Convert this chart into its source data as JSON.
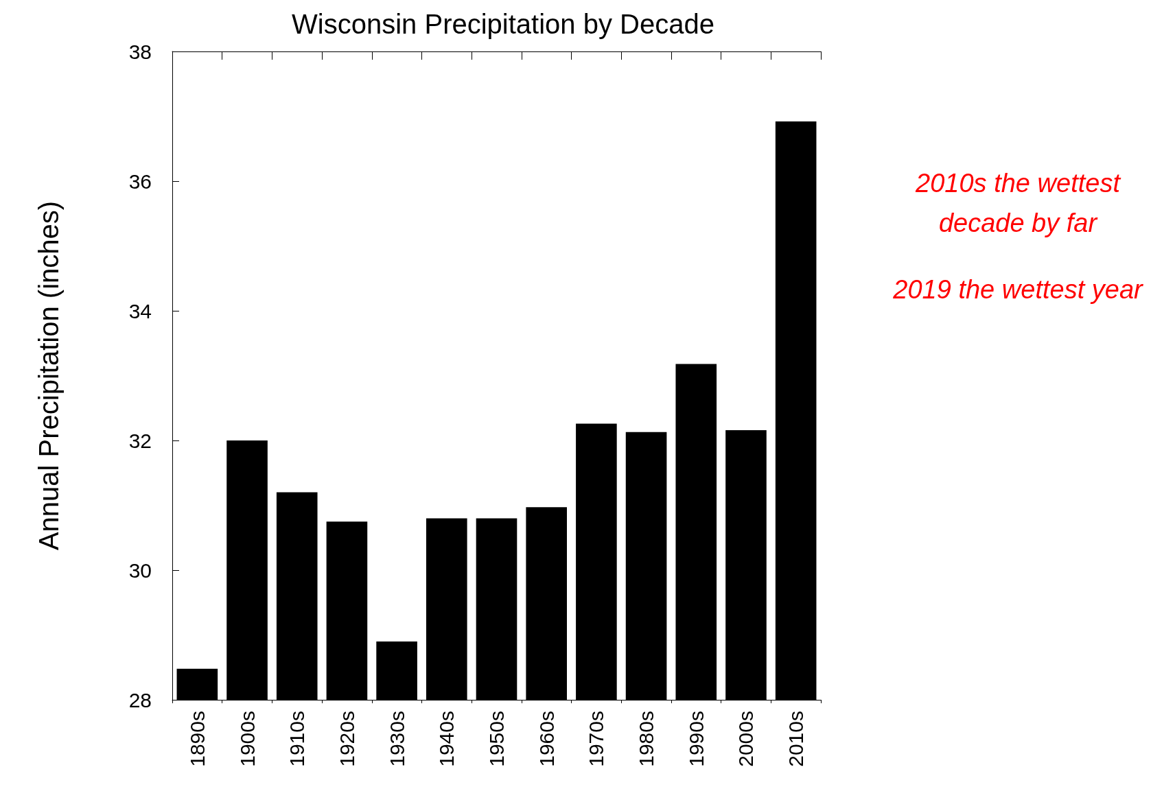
{
  "chart_data": {
    "type": "bar",
    "title": "Wisconsin Precipitation by Decade",
    "ylabel": "Annual Precipitation (inches)",
    "categories": [
      "1890s",
      "1900s",
      "1910s",
      "1920s",
      "1930s",
      "1940s",
      "1950s",
      "1960s",
      "1970s",
      "1980s",
      "1990s",
      "2000s",
      "2010s"
    ],
    "values": [
      28.48,
      32.0,
      31.2,
      30.75,
      28.9,
      30.8,
      30.8,
      30.97,
      32.26,
      32.13,
      33.18,
      32.16,
      36.92
    ],
    "color": "#000000",
    "ylim": [
      28,
      38
    ],
    "yticks": [
      28,
      30,
      32,
      34,
      36,
      38
    ],
    "grid": false,
    "annotations": [
      "2010s the wettest decade by far",
      "2019 the wettest year"
    ]
  }
}
